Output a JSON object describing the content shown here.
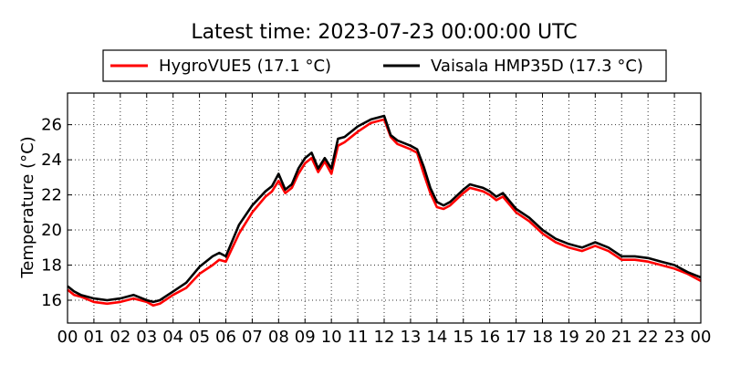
{
  "chart_data": {
    "type": "line",
    "title": "Latest time: 2023-07-23 00:00:00 UTC",
    "xlabel": "",
    "ylabel": "Temperature (°C)",
    "xlim": [
      0,
      24
    ],
    "ylim": [
      14.7,
      27.8
    ],
    "xticks": [
      "00",
      "01",
      "02",
      "03",
      "04",
      "05",
      "06",
      "07",
      "08",
      "09",
      "10",
      "11",
      "12",
      "13",
      "14",
      "15",
      "16",
      "17",
      "18",
      "19",
      "20",
      "21",
      "22",
      "23",
      "00"
    ],
    "yticks": [
      16,
      18,
      20,
      22,
      24,
      26
    ],
    "grid": true,
    "legend_position": "top",
    "series": [
      {
        "name": "HygroVUE5 (17.1 °C)",
        "color": "#ff0000",
        "x": [
          0,
          0.25,
          0.5,
          1,
          1.5,
          2,
          2.5,
          3,
          3.25,
          3.5,
          4,
          4.5,
          5,
          5.5,
          5.75,
          6,
          6.5,
          7,
          7.5,
          7.75,
          8,
          8.25,
          8.5,
          8.75,
          9,
          9.25,
          9.5,
          9.75,
          10,
          10.25,
          10.5,
          11,
          11.5,
          12,
          12.25,
          12.5,
          13,
          13.25,
          13.5,
          13.75,
          14,
          14.25,
          14.5,
          15,
          15.25,
          15.5,
          15.75,
          16,
          16.25,
          16.5,
          17,
          17.5,
          18,
          18.5,
          19,
          19.5,
          20,
          20.5,
          21,
          21.5,
          22,
          22.5,
          23,
          23.5,
          24
        ],
        "y": [
          16.6,
          16.3,
          16.2,
          15.9,
          15.8,
          15.9,
          16.1,
          15.9,
          15.7,
          15.8,
          16.3,
          16.7,
          17.5,
          18.0,
          18.3,
          18.2,
          19.8,
          21.0,
          21.9,
          22.2,
          22.8,
          22.1,
          22.4,
          23.2,
          23.8,
          24.1,
          23.3,
          23.9,
          23.2,
          24.8,
          25.0,
          25.6,
          26.1,
          26.3,
          25.3,
          24.9,
          24.6,
          24.4,
          23.2,
          22.1,
          21.3,
          21.2,
          21.4,
          22.1,
          22.4,
          22.3,
          22.2,
          22.0,
          21.7,
          21.9,
          21.0,
          20.5,
          19.8,
          19.3,
          19.0,
          18.8,
          19.1,
          18.8,
          18.3,
          18.3,
          18.2,
          18.0,
          17.8,
          17.5,
          17.1
        ]
      },
      {
        "name": "Vaisala HMP35D (17.3 °C)",
        "color": "#000000",
        "x": [
          0,
          0.25,
          0.5,
          1,
          1.5,
          2,
          2.5,
          3,
          3.25,
          3.5,
          4,
          4.5,
          5,
          5.5,
          5.75,
          6,
          6.5,
          7,
          7.5,
          7.75,
          8,
          8.25,
          8.5,
          8.75,
          9,
          9.25,
          9.5,
          9.75,
          10,
          10.25,
          10.5,
          11,
          11.5,
          12,
          12.25,
          12.5,
          13,
          13.25,
          13.5,
          13.75,
          14,
          14.25,
          14.5,
          15,
          15.25,
          15.5,
          15.75,
          16,
          16.25,
          16.5,
          17,
          17.5,
          18,
          18.5,
          19,
          19.5,
          20,
          20.5,
          21,
          21.5,
          22,
          22.5,
          23,
          23.5,
          24
        ],
        "y": [
          16.8,
          16.5,
          16.3,
          16.1,
          16.0,
          16.1,
          16.3,
          16.0,
          15.9,
          16.0,
          16.5,
          17.0,
          17.9,
          18.5,
          18.7,
          18.5,
          20.3,
          21.4,
          22.2,
          22.5,
          23.2,
          22.3,
          22.6,
          23.5,
          24.1,
          24.4,
          23.5,
          24.1,
          23.5,
          25.2,
          25.3,
          25.9,
          26.3,
          26.5,
          25.4,
          25.1,
          24.8,
          24.6,
          23.6,
          22.4,
          21.6,
          21.4,
          21.6,
          22.3,
          22.6,
          22.5,
          22.4,
          22.2,
          21.9,
          22.1,
          21.2,
          20.7,
          20.0,
          19.5,
          19.2,
          19.0,
          19.3,
          19.0,
          18.5,
          18.5,
          18.4,
          18.2,
          18.0,
          17.6,
          17.3
        ]
      }
    ]
  }
}
